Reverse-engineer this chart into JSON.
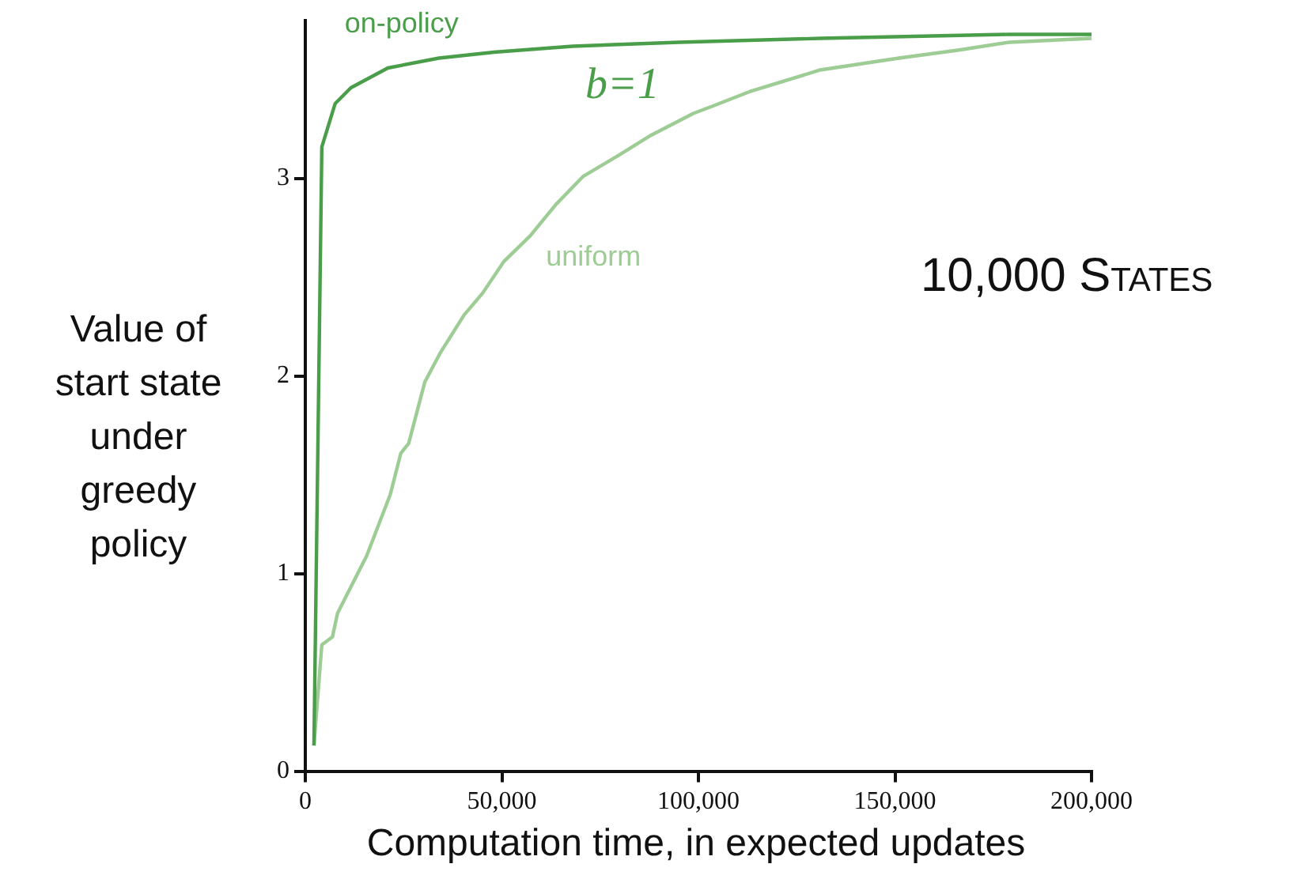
{
  "chart_data": {
    "type": "line",
    "xlabel": "Computation time, in expected updates",
    "ylabel": "Value of start state under greedy policy",
    "xlim": [
      0,
      200000
    ],
    "ylim": [
      0,
      3.8
    ],
    "xticks": [
      0,
      {
        "value": 50000,
        "label": "50,000"
      },
      {
        "value": 100000,
        "label": "100,000"
      },
      {
        "value": 150000,
        "label": "150,000"
      },
      {
        "value": 200000,
        "label": "200,000"
      }
    ],
    "yticks": [
      0,
      1,
      2,
      3
    ],
    "annotations": [
      "b=1",
      "10,000 States"
    ],
    "series": [
      {
        "name": "on-policy",
        "color": "#4a9e4a",
        "x": [
          2200,
          4200,
          7600,
          11600,
          21000,
          34000,
          48000,
          68000,
          95000,
          131000,
          179000,
          200000
        ],
        "values": [
          0.13,
          3.16,
          3.38,
          3.46,
          3.56,
          3.61,
          3.64,
          3.67,
          3.69,
          3.71,
          3.73,
          3.73
        ]
      },
      {
        "name": "uniform",
        "color": "#9dcc95",
        "x": [
          2200,
          4200,
          6900,
          8200,
          15600,
          21600,
          24300,
          26300,
          30400,
          34400,
          40400,
          45100,
          50500,
          57200,
          63800,
          70600,
          79900,
          88000,
          98700,
          104000,
          113000,
          131000,
          151000,
          166000,
          179000,
          200000
        ],
        "values": [
          0.13,
          0.64,
          0.68,
          0.8,
          1.09,
          1.4,
          1.61,
          1.66,
          1.97,
          2.12,
          2.31,
          2.42,
          2.58,
          2.71,
          2.87,
          3.01,
          3.12,
          3.22,
          3.33,
          3.37,
          3.44,
          3.55,
          3.61,
          3.65,
          3.69,
          3.71
        ]
      }
    ]
  }
}
